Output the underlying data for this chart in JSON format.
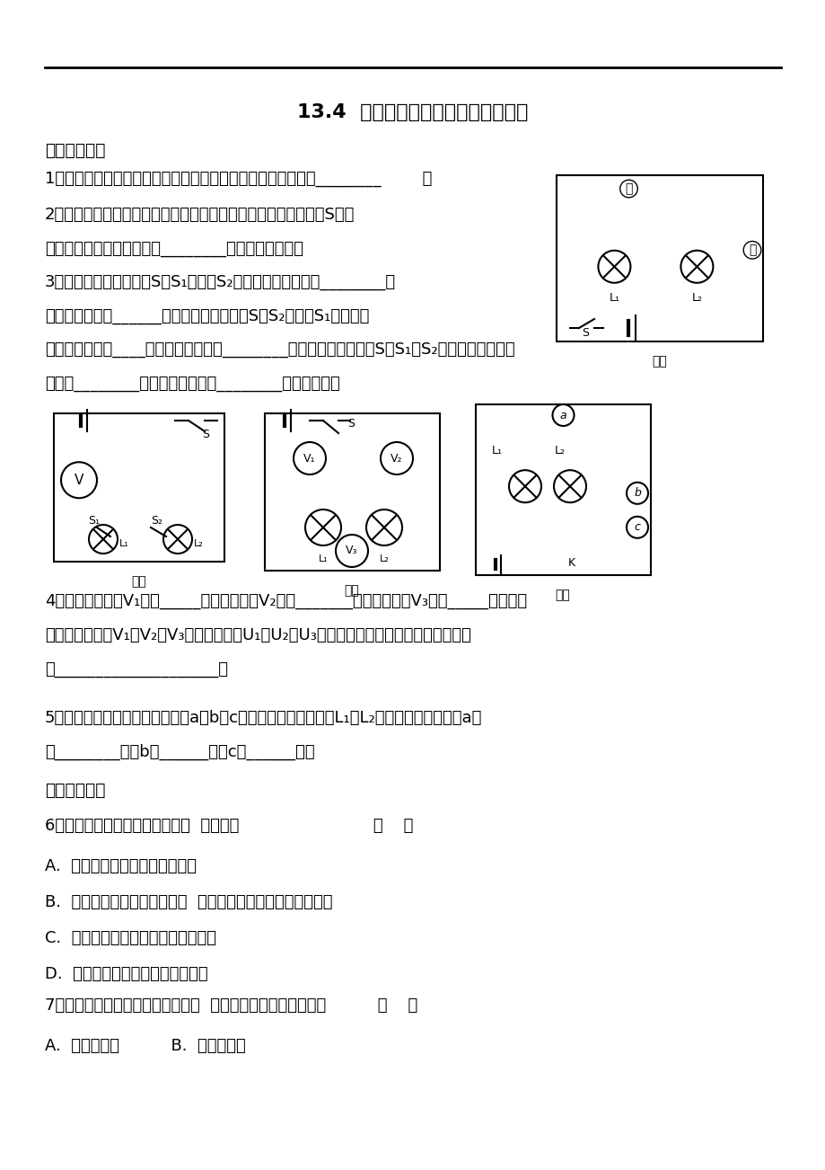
{
  "title": "13.4  电压和电压表的使用的课后练习",
  "background": "#ffffff",
  "text_color": "#000000",
  "section1": "一、填空题：",
  "section2": "二．选择题：",
  "q1": "1、某电池组是由三节干电池串联成的，那么电池组的总电压为________        。",
  "q2_line1": "2、如图１所示，在电路中，若甲、乙两处分别装入电表，当开关S闭合",
  "q2_line2": "后，两灯均能正常发光，则________处电表示电压表。",
  "q3_line1": "3、如图２所示，若开关S、S₁闭合，S₂断开，能发光的灯是________，",
  "q3_line2": "电压表所测的是______两端的电压；若开关S、S₂闭合，S₁断开，那",
  "q3_line3": "么能发光的灯是____，电压表所测的是________的两端电压；若开关S、S₁、S₂都闭合，那么能发",
  "q3_line4": "光的是________，电压表所测的是________两端的电压。",
  "fig1_label": "图１",
  "fig2_label": "图２",
  "fig3_label": "图３",
  "fig4_label": "图４",
  "q4_line1": "4、如图３所示，V₁测量_____两端的电压；V₂测量_______两端的电压；V₃测量_____两端的电",
  "q4_line2": "压，其中电压表V₁、V₂和V₃的示数分别为U₁、U₂和U₃，则三个电表示数之间存在的关系式",
  "q4_line3": "是____________________。",
  "q5_line1": "5、如图４所示的电路里，在圆圈a、b、c上连接适当电表，使灯L₁和L₂并联且能发光，那么a应",
  "q5_line2": "是________表；b是______表；c是______表。",
  "q6": "6、下列关于并联电路的说法中，  错误的是                          （    ）",
  "q6a": "A.  各用电器是并列地连接起来的",
  "q6b": "B.  若一个用电器的内部断路，  其余的用电器也不可能通电工作",
  "q6c": "C.  并联电路是由干路和各支路组成的",
  "q6d": "D.  相互并联的电路两端的电压相等",
  "q7": "7、一个开关同时能控制三只灯泡，  则这三只灯泡的连接方式为          （    ）",
  "q7a": "A.  一定是串联          B.  一定是并联"
}
